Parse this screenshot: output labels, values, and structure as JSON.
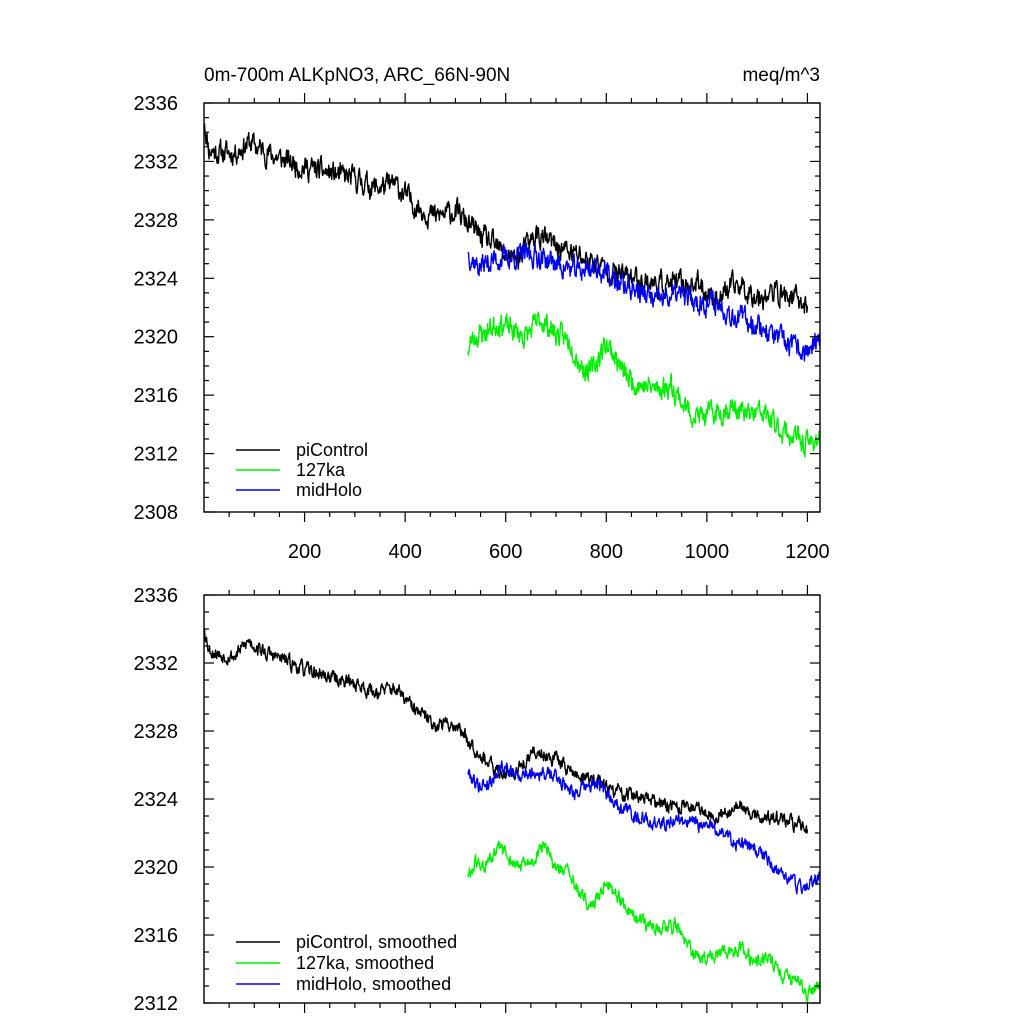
{
  "chart_data": [
    {
      "type": "line",
      "title_left": "0m-700m ALKpNO3, ARC_66N-90N",
      "title_right": "meq/m^3",
      "xlim": [
        0,
        1225
      ],
      "ylim": [
        2308,
        2336
      ],
      "x_ticks": [
        200,
        400,
        600,
        800,
        1000,
        1200
      ],
      "x_tick_labels": [
        "200",
        "400",
        "600",
        "800",
        "1000",
        "1200"
      ],
      "y_ticks": [
        2308,
        2312,
        2316,
        2320,
        2324,
        2328,
        2332,
        2336
      ],
      "y_tick_labels": [
        "2308",
        "2312",
        "2316",
        "2320",
        "2324",
        "2328",
        "2332",
        "2336"
      ],
      "noise": 0.65,
      "series": [
        {
          "name": "piControl",
          "color": "#000000",
          "seed": 11,
          "x_start": 1,
          "x_end": 1200,
          "anchors": [
            [
              1,
              2334.6
            ],
            [
              10,
              2332.8
            ],
            [
              30,
              2332.6
            ],
            [
              60,
              2332.6
            ],
            [
              90,
              2333.3
            ],
            [
              120,
              2332.7
            ],
            [
              150,
              2332.2
            ],
            [
              200,
              2331.6
            ],
            [
              260,
              2331.1
            ],
            [
              300,
              2330.8
            ],
            [
              340,
              2330.2
            ],
            [
              380,
              2330.4
            ],
            [
              420,
              2329.0
            ],
            [
              460,
              2328.2
            ],
            [
              500,
              2328.6
            ],
            [
              540,
              2327.2
            ],
            [
              580,
              2326.1
            ],
            [
              620,
              2325.2
            ],
            [
              660,
              2327.0
            ],
            [
              700,
              2326.2
            ],
            [
              740,
              2325.6
            ],
            [
              780,
              2325.0
            ],
            [
              820,
              2324.3
            ],
            [
              860,
              2324.0
            ],
            [
              900,
              2323.6
            ],
            [
              940,
              2323.6
            ],
            [
              980,
              2323.6
            ],
            [
              1020,
              2322.6
            ],
            [
              1060,
              2323.6
            ],
            [
              1100,
              2322.8
            ],
            [
              1140,
              2323.0
            ],
            [
              1170,
              2322.7
            ],
            [
              1200,
              2322.1
            ]
          ]
        },
        {
          "name": "127ka",
          "color": "#00ee00",
          "seed": 23,
          "x_start": 525,
          "x_end": 1225,
          "anchors": [
            [
              525,
              2319.0
            ],
            [
              535,
              2320.0
            ],
            [
              560,
              2320.3
            ],
            [
              585,
              2321.0
            ],
            [
              610,
              2320.5
            ],
            [
              640,
              2320.0
            ],
            [
              670,
              2321.2
            ],
            [
              700,
              2320.2
            ],
            [
              730,
              2319.6
            ],
            [
              750,
              2318.0
            ],
            [
              770,
              2317.6
            ],
            [
              800,
              2319.6
            ],
            [
              820,
              2318.5
            ],
            [
              840,
              2317.2
            ],
            [
              870,
              2316.7
            ],
            [
              900,
              2316.4
            ],
            [
              930,
              2316.7
            ],
            [
              960,
              2315.0
            ],
            [
              990,
              2314.5
            ],
            [
              1020,
              2314.8
            ],
            [
              1050,
              2315.2
            ],
            [
              1080,
              2314.6
            ],
            [
              1110,
              2314.8
            ],
            [
              1140,
              2313.8
            ],
            [
              1170,
              2313.2
            ],
            [
              1200,
              2312.6
            ],
            [
              1225,
              2313.2
            ]
          ]
        },
        {
          "name": "midHolo",
          "color": "#0000ee",
          "seed": 37,
          "x_start": 525,
          "x_end": 1225,
          "anchors": [
            [
              525,
              2325.8
            ],
            [
              545,
              2324.8
            ],
            [
              580,
              2325.3
            ],
            [
              620,
              2325.5
            ],
            [
              660,
              2325.6
            ],
            [
              700,
              2325.0
            ],
            [
              740,
              2324.5
            ],
            [
              780,
              2324.8
            ],
            [
              820,
              2323.7
            ],
            [
              860,
              2323.2
            ],
            [
              900,
              2322.4
            ],
            [
              940,
              2322.9
            ],
            [
              980,
              2322.4
            ],
            [
              1020,
              2322.3
            ],
            [
              1060,
              2321.4
            ],
            [
              1100,
              2320.9
            ],
            [
              1140,
              2319.9
            ],
            [
              1180,
              2319.1
            ],
            [
              1200,
              2319.0
            ],
            [
              1225,
              2319.5
            ]
          ]
        }
      ],
      "legend": {
        "placement": "bottom-left",
        "entries": [
          {
            "label": "piControl",
            "color": "#000000"
          },
          {
            "label": "127ka",
            "color": "#00ee00"
          },
          {
            "label": "midHolo",
            "color": "#0000ee"
          }
        ]
      }
    },
    {
      "type": "line",
      "xlim": [
        0,
        1225
      ],
      "ylim": [
        2312,
        2336
      ],
      "x_ticks": [
        200,
        400,
        600,
        800,
        1000,
        1200
      ],
      "y_ticks": [
        2312,
        2316,
        2320,
        2324,
        2328,
        2332,
        2336
      ],
      "y_tick_labels": [
        "2312",
        "2316",
        "2320",
        "2324",
        "2328",
        "2332",
        "2336"
      ],
      "noise": 0.35,
      "series": [
        {
          "name": "piControl, smoothed",
          "color": "#000000",
          "seed": 53,
          "x_start": 1,
          "x_end": 1200,
          "anchors": [
            [
              1,
              2334.0
            ],
            [
              10,
              2332.8
            ],
            [
              30,
              2332.5
            ],
            [
              60,
              2332.4
            ],
            [
              90,
              2333.3
            ],
            [
              120,
              2332.6
            ],
            [
              150,
              2332.3
            ],
            [
              200,
              2331.6
            ],
            [
              260,
              2331.1
            ],
            [
              300,
              2330.8
            ],
            [
              340,
              2330.3
            ],
            [
              380,
              2330.5
            ],
            [
              420,
              2329.2
            ],
            [
              460,
              2328.4
            ],
            [
              500,
              2328.4
            ],
            [
              540,
              2327.0
            ],
            [
              580,
              2325.6
            ],
            [
              620,
              2325.6
            ],
            [
              660,
              2326.8
            ],
            [
              700,
              2326.4
            ],
            [
              740,
              2325.4
            ],
            [
              780,
              2325.1
            ],
            [
              820,
              2324.4
            ],
            [
              860,
              2324.2
            ],
            [
              900,
              2323.7
            ],
            [
              940,
              2323.6
            ],
            [
              980,
              2323.5
            ],
            [
              1020,
              2323.0
            ],
            [
              1060,
              2323.6
            ],
            [
              1100,
              2323.0
            ],
            [
              1140,
              2322.8
            ],
            [
              1170,
              2322.6
            ],
            [
              1200,
              2322.2
            ]
          ]
        },
        {
          "name": "127ka, smoothed",
          "color": "#00ee00",
          "seed": 61,
          "x_start": 525,
          "x_end": 1225,
          "anchors": [
            [
              525,
              2319.4
            ],
            [
              540,
              2320.2
            ],
            [
              560,
              2320.0
            ],
            [
              590,
              2321.2
            ],
            [
              620,
              2320.0
            ],
            [
              650,
              2320.2
            ],
            [
              675,
              2321.2
            ],
            [
              700,
              2320.0
            ],
            [
              730,
              2319.5
            ],
            [
              750,
              2318.2
            ],
            [
              775,
              2317.7
            ],
            [
              800,
              2319.2
            ],
            [
              825,
              2318.2
            ],
            [
              850,
              2317.0
            ],
            [
              880,
              2316.6
            ],
            [
              910,
              2316.5
            ],
            [
              940,
              2316.6
            ],
            [
              970,
              2314.9
            ],
            [
              1000,
              2314.6
            ],
            [
              1030,
              2314.9
            ],
            [
              1060,
              2315.3
            ],
            [
              1090,
              2314.6
            ],
            [
              1120,
              2314.7
            ],
            [
              1150,
              2313.7
            ],
            [
              1180,
              2313.3
            ],
            [
              1200,
              2312.4
            ],
            [
              1225,
              2313.2
            ]
          ]
        },
        {
          "name": "midHolo, smoothed",
          "color": "#0000ee",
          "seed": 79,
          "x_start": 525,
          "x_end": 1225,
          "anchors": [
            [
              525,
              2325.6
            ],
            [
              545,
              2324.8
            ],
            [
              570,
              2325.0
            ],
            [
              590,
              2326.0
            ],
            [
              620,
              2325.4
            ],
            [
              660,
              2325.6
            ],
            [
              700,
              2325.3
            ],
            [
              740,
              2324.4
            ],
            [
              780,
              2324.9
            ],
            [
              820,
              2323.8
            ],
            [
              860,
              2323.0
            ],
            [
              900,
              2322.5
            ],
            [
              940,
              2322.8
            ],
            [
              980,
              2322.5
            ],
            [
              1020,
              2322.3
            ],
            [
              1060,
              2321.4
            ],
            [
              1100,
              2321.0
            ],
            [
              1140,
              2319.8
            ],
            [
              1180,
              2318.9
            ],
            [
              1200,
              2318.9
            ],
            [
              1225,
              2319.5
            ]
          ]
        }
      ],
      "legend": {
        "placement": "bottom-left",
        "entries": [
          {
            "label": "piControl, smoothed",
            "color": "#000000"
          },
          {
            "label": "127ka, smoothed",
            "color": "#00ee00"
          },
          {
            "label": "midHolo, smoothed",
            "color": "#0000ee"
          }
        ]
      }
    }
  ]
}
